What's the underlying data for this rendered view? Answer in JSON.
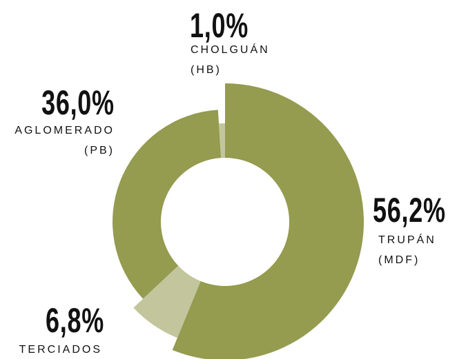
{
  "chart_data": {
    "type": "donut",
    "categories": [
      "TRUPÁN\n(MDF)",
      "TERCIADOS",
      "AGLOMERADO\n(PB)",
      "CHOLGUÁN\n(HB)"
    ],
    "values": [
      56.2,
      6.8,
      36.0,
      1.0
    ],
    "value_labels": [
      "56,2%",
      "6,8%",
      "36,0%",
      "1,0%"
    ],
    "colors": [
      "#959b4f",
      "#c3c59c",
      "#959b4f",
      "#c3c59c"
    ]
  }
}
